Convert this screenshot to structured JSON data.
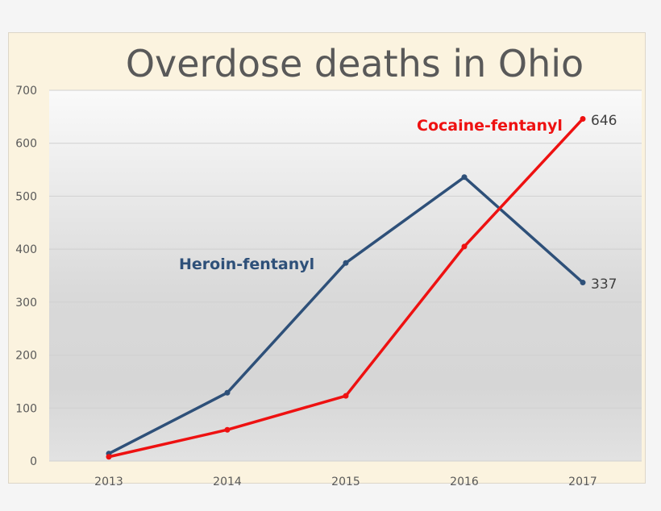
{
  "chart_data": {
    "type": "line",
    "title": "Overdose deaths in Ohio",
    "xlabel": "",
    "ylabel": "",
    "categories": [
      "2013",
      "2014",
      "2015",
      "2016",
      "2017"
    ],
    "ylim": [
      0,
      700
    ],
    "yticks": [
      "0",
      "100",
      "200",
      "300",
      "400",
      "500",
      "600",
      "700"
    ],
    "grid": true,
    "legend": "inline labels",
    "series": [
      {
        "name": "Heroin-fentanyl",
        "color": "#2e5079",
        "values": [
          14,
          129,
          374,
          536,
          337
        ],
        "end_label": "337"
      },
      {
        "name": "Cocaine-fentanyl",
        "color": "#ee1111",
        "values": [
          8,
          59,
          123,
          405,
          646
        ],
        "end_label": "646"
      }
    ]
  }
}
